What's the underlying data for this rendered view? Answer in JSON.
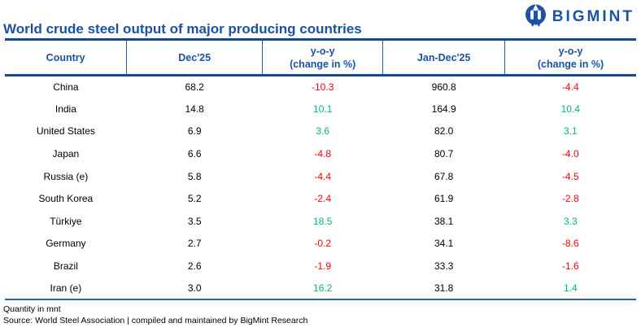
{
  "brand": {
    "name": "BIGMINT",
    "icon": "bigmint-m-icon",
    "color": "#1B52A3"
  },
  "title": "World crude steel output of major producing countries",
  "table": {
    "columns": [
      {
        "label": "Country",
        "sublabel": ""
      },
      {
        "label": "Dec'25",
        "sublabel": ""
      },
      {
        "label": "y-o-y",
        "sublabel": "(change in %)"
      },
      {
        "label": "Jan-Dec'25",
        "sublabel": ""
      },
      {
        "label": "y-o-y",
        "sublabel": "(change in %)"
      }
    ],
    "rows": [
      {
        "cells": [
          "China",
          "68.2",
          "-10.3",
          "960.8",
          "-4.4"
        ]
      },
      {
        "cells": [
          "India",
          "14.8",
          "10.1",
          "164.9",
          "10.4"
        ]
      },
      {
        "cells": [
          "United States",
          "6.9",
          "3.6",
          "82.0",
          "3.1"
        ]
      },
      {
        "cells": [
          "Japan",
          "6.6",
          "-4.8",
          "80.7",
          "-4.0"
        ]
      },
      {
        "cells": [
          "Russia (e)",
          "5.8",
          "-4.4",
          "67.8",
          "-4.5"
        ]
      },
      {
        "cells": [
          "South Korea",
          "5.2",
          "-2.4",
          "61.9",
          "-2.8"
        ]
      },
      {
        "cells": [
          "Türkiye",
          "3.5",
          "18.5",
          "38.1",
          "3.3"
        ]
      },
      {
        "cells": [
          "Germany",
          "2.7",
          "-0.2",
          "34.1",
          "-8.6"
        ]
      },
      {
        "cells": [
          "Brazil",
          "2.6",
          "-1.9",
          "33.3",
          "-1.6"
        ]
      },
      {
        "cells": [
          "Iran (e)",
          "3.0",
          "16.2",
          "31.8",
          "1.4"
        ]
      }
    ],
    "change_column_indexes": [
      2,
      4
    ]
  },
  "footer": {
    "note": "Quantity in mnt",
    "source": "Source: World Steel Association | compiled and maintained by BigMint Research"
  },
  "colors": {
    "positive": "#00B876",
    "negative": "#FF0000",
    "brand_blue": "#1B52A3",
    "line_navy": "#14498F"
  }
}
